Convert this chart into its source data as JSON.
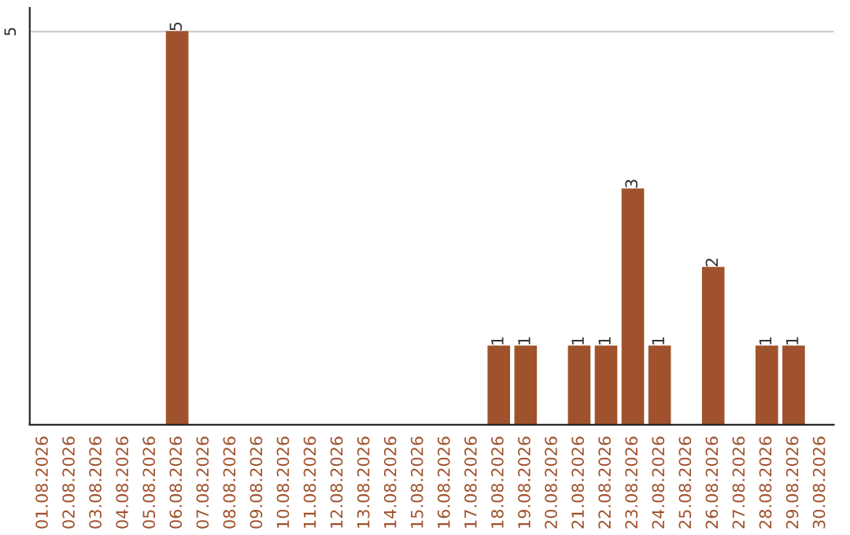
{
  "chart_data": {
    "type": "bar",
    "categories": [
      "01.08.2026",
      "02.08.2026",
      "03.08.2026",
      "04.08.2026",
      "05.08.2026",
      "06.08.2026",
      "07.08.2026",
      "08.08.2026",
      "09.08.2026",
      "10.08.2026",
      "11.08.2026",
      "12.08.2026",
      "13.08.2026",
      "14.08.2026",
      "15.08.2026",
      "16.08.2026",
      "17.08.2026",
      "18.08.2026",
      "19.08.2026",
      "20.08.2026",
      "21.08.2026",
      "22.08.2026",
      "23.08.2026",
      "24.08.2026",
      "25.08.2026",
      "26.08.2026",
      "27.08.2026",
      "28.08.2026",
      "29.08.2026",
      "30.08.2026"
    ],
    "values": [
      0,
      0,
      0,
      0,
      0,
      5,
      0,
      0,
      0,
      0,
      0,
      0,
      0,
      0,
      0,
      0,
      0,
      1,
      1,
      0,
      1,
      1,
      3,
      1,
      0,
      2,
      0,
      1,
      1,
      0
    ],
    "value_labels": [
      null,
      null,
      null,
      null,
      null,
      "5",
      null,
      null,
      null,
      null,
      null,
      null,
      null,
      null,
      null,
      null,
      null,
      "1",
      "1",
      null,
      "1",
      "1",
      "3",
      "1",
      null,
      "2",
      null,
      "1",
      "1",
      null
    ],
    "color": "#a0522d",
    "ylim": [
      0,
      5.3
    ],
    "yticks": [
      5
    ],
    "grid": "y",
    "legend": false
  }
}
